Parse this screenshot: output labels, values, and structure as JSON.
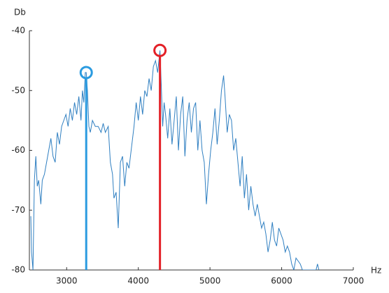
{
  "chart_data": {
    "type": "line",
    "ylabel": "Db",
    "xlabel": "Hz",
    "xlim": [
      2480,
      7000
    ],
    "xticks": [
      3000,
      4000,
      5000,
      6000,
      7000
    ],
    "ylim": [
      -80,
      -40
    ],
    "yticks": [
      -80,
      -70,
      -60,
      -50,
      -40
    ],
    "series": [
      {
        "color": "#2f7fc1",
        "x": [
          2500,
          2510,
          2530,
          2550,
          2570,
          2590,
          2610,
          2640,
          2660,
          2690,
          2720,
          2750,
          2780,
          2810,
          2840,
          2870,
          2900,
          2930,
          2960,
          2990,
          3020,
          3050,
          3080,
          3110,
          3140,
          3170,
          3200,
          3220,
          3240,
          3260,
          3273,
          3290,
          3310,
          3330,
          3360,
          3400,
          3440,
          3480,
          3510,
          3540,
          3580,
          3610,
          3640,
          3660,
          3690,
          3720,
          3750,
          3780,
          3810,
          3840,
          3870,
          3900,
          3940,
          3970,
          4000,
          4030,
          4060,
          4090,
          4120,
          4150,
          4180,
          4210,
          4240,
          4270,
          4302,
          4320,
          4340,
          4360,
          4380,
          4410,
          4440,
          4470,
          4500,
          4530,
          4560,
          4590,
          4620,
          4650,
          4680,
          4710,
          4740,
          4770,
          4800,
          4830,
          4860,
          4890,
          4920,
          4950,
          4980,
          5010,
          5040,
          5070,
          5100,
          5130,
          5160,
          5190,
          5210,
          5240,
          5270,
          5300,
          5330,
          5360,
          5390,
          5420,
          5450,
          5480,
          5510,
          5540,
          5570,
          5600,
          5630,
          5660,
          5690,
          5720,
          5750,
          5780,
          5810,
          5840,
          5870,
          5900,
          5930,
          5960,
          5990,
          6020,
          6050,
          6080,
          6110,
          6140,
          6170,
          6200,
          6230,
          6260,
          6290,
          6480,
          6500,
          6520
        ],
        "values": [
          -71,
          -77,
          -80,
          -65,
          -61,
          -66,
          -65,
          -69,
          -65,
          -64,
          -62,
          -60,
          -58,
          -61,
          -62,
          -57,
          -59,
          -56,
          -55,
          -54,
          -56,
          -53,
          -55,
          -52,
          -54,
          -51,
          -55,
          -50,
          -52,
          -47,
          -47,
          -50,
          -56,
          -57,
          -55,
          -56,
          -56,
          -57,
          -55.5,
          -57,
          -56,
          -62,
          -64,
          -68,
          -67,
          -73,
          -62,
          -61,
          -66,
          -62,
          -63,
          -60,
          -56,
          -52,
          -55,
          -51,
          -54,
          -50,
          -51,
          -48,
          -50,
          -46,
          -45,
          -47,
          -43.3,
          -49,
          -56,
          -52,
          -54,
          -58,
          -53,
          -59,
          -55,
          -51,
          -60,
          -54,
          -51,
          -61,
          -55,
          -52,
          -57,
          -53,
          -52,
          -60,
          -55,
          -60,
          -62,
          -69,
          -64,
          -60,
          -57,
          -53,
          -59,
          -55,
          -50,
          -47.5,
          -51,
          -57,
          -54,
          -55,
          -60,
          -58,
          -62,
          -66,
          -61,
          -68,
          -64,
          -70,
          -66,
          -69,
          -71,
          -69,
          -71,
          -73,
          -72,
          -74,
          -77,
          -75,
          -72,
          -75,
          -76,
          -73,
          -74,
          -75,
          -77,
          -76,
          -77,
          -79,
          -80,
          -78,
          -78.5,
          -79,
          -80,
          -80,
          -79,
          -80
        ]
      }
    ],
    "stems": [
      {
        "x": 3273,
        "value": -47,
        "color": "#2b9be0"
      },
      {
        "x": 4302,
        "value": -43.3,
        "color": "#e32027"
      }
    ]
  }
}
